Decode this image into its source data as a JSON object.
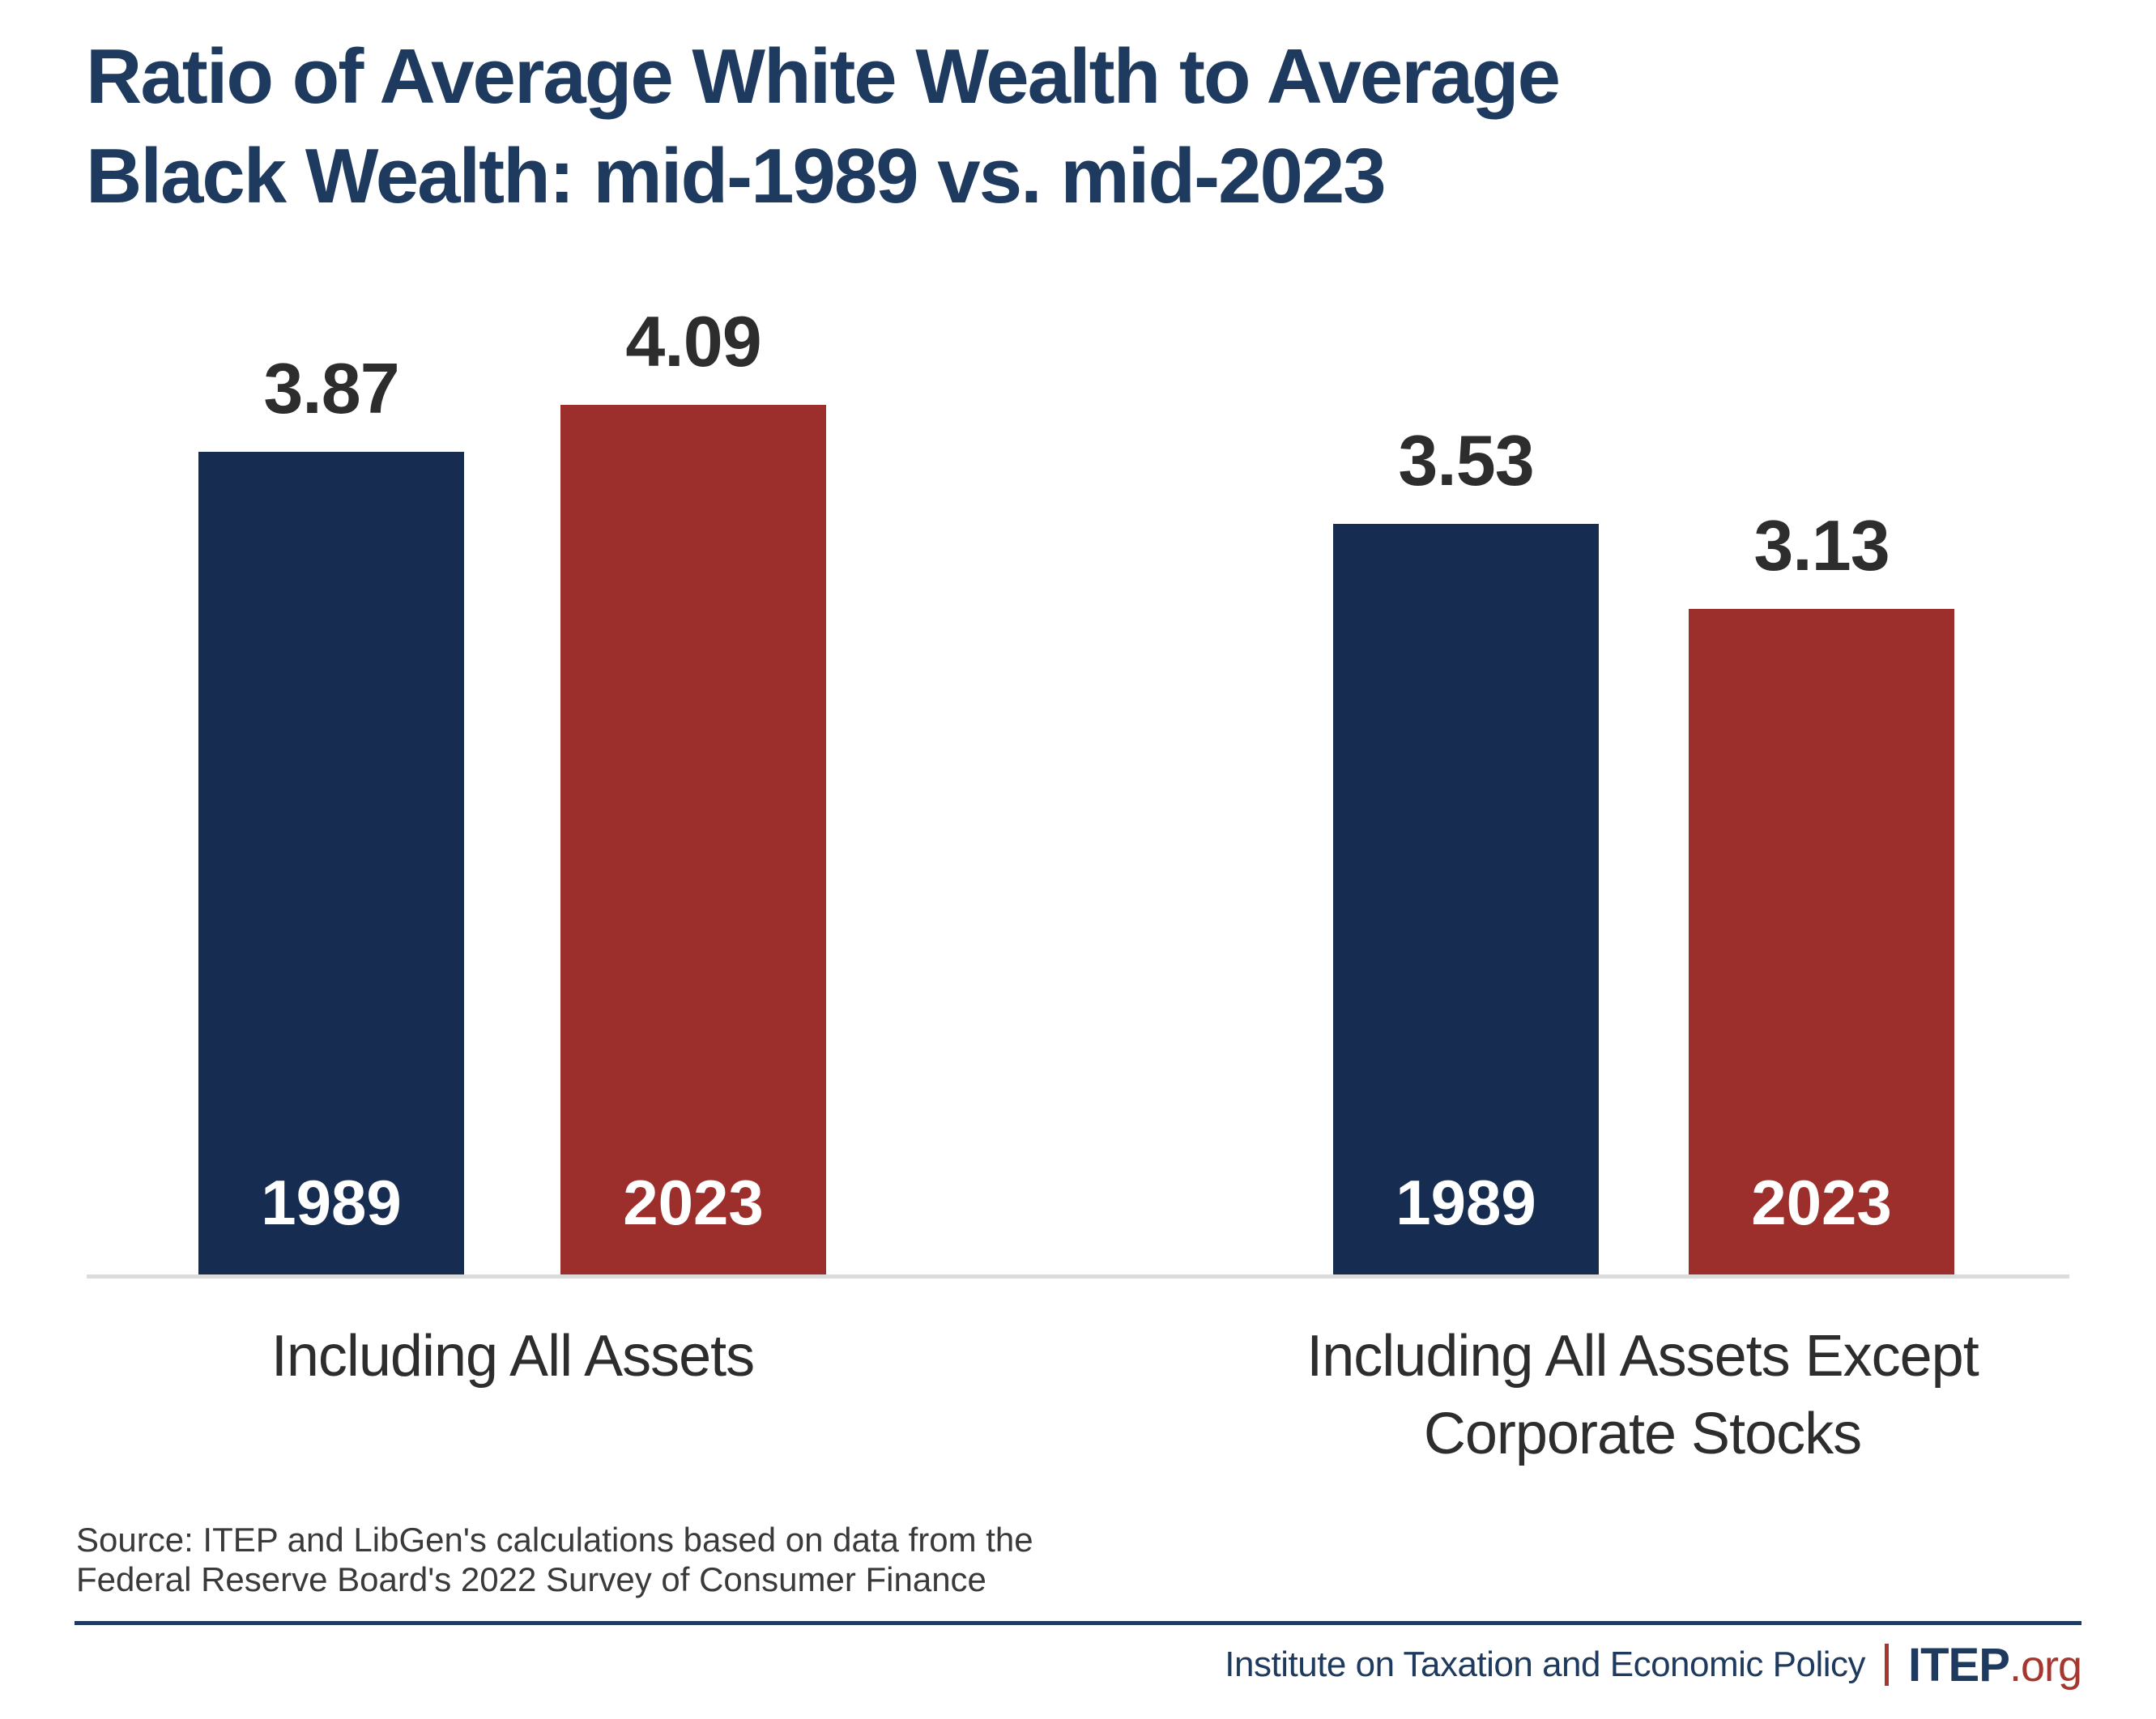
{
  "title": "Ratio of Average White Wealth to Average\nBlack Wealth: mid-1989 vs. mid-2023",
  "chart_data": {
    "type": "bar",
    "groups": [
      {
        "label": "Including All Assets",
        "series": [
          {
            "year": "1989",
            "value": 3.87
          },
          {
            "year": "2023",
            "value": 4.09
          }
        ]
      },
      {
        "label": "Including All Assets Except\nCorporate Stocks",
        "series": [
          {
            "year": "1989",
            "value": 3.53
          },
          {
            "year": "2023",
            "value": 3.13
          }
        ]
      }
    ],
    "colors": {
      "1989": "#162C50",
      "2023": "#9C2F2B"
    },
    "title": "Ratio of Average White Wealth to Average Black Wealth: mid-1989 vs. mid-2023",
    "xlabel": "",
    "ylabel": "",
    "ylim": [
      0,
      4.3
    ],
    "grid": false,
    "legend_position": "year labels inside bar bases",
    "value_labels": "above bars, two decimals"
  },
  "source_note": "Source: ITEP and LibGen's calculations based on data from the\nFederal Reserve Board's 2022 Survey of Consumer Finance",
  "footer": {
    "org_name": "Institute on Taxation and Economic Policy",
    "brand_name": "ITEP",
    "brand_suffix": ".org"
  },
  "style_colors": {
    "title_navy": "#1E3A5F",
    "bar_navy": "#162C50",
    "bar_red": "#9C2F2B",
    "accent_red": "#A6372E",
    "label_gray": "#2D2D2D",
    "source_gray": "#3A3A3A",
    "baseline_gray": "#DCDCDC"
  }
}
